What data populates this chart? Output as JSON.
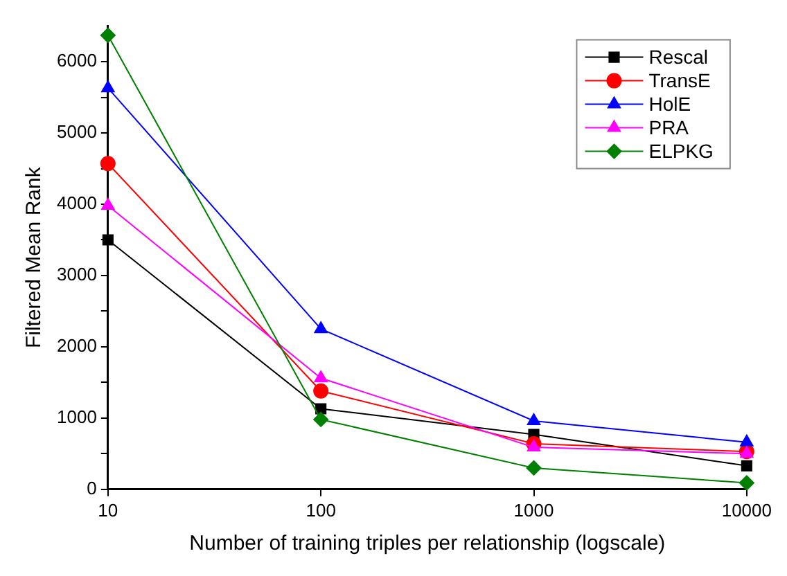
{
  "chart_data": {
    "type": "line",
    "xlabel": "Number of training triples per relationship (logscale)",
    "ylabel": "Filtered Mean Rank",
    "x": [
      10,
      100,
      1000,
      10000
    ],
    "log": "x",
    "xlim": [
      10,
      10000
    ],
    "xticks": [
      10,
      100,
      1000,
      10000
    ],
    "ylim": [
      0,
      6500
    ],
    "yticks": [
      0,
      {
        "value": 500,
        "label": null
      },
      1000,
      {
        "value": 1500,
        "label": null
      },
      2000,
      {
        "value": 2500,
        "label": null
      },
      3000,
      {
        "value": 3500,
        "label": null
      },
      4000,
      {
        "value": 4500,
        "label": null
      },
      5000,
      {
        "value": 5500,
        "label": null
      },
      6000
    ],
    "grid": false,
    "legend": "top right",
    "line_style": "solid",
    "series": [
      {
        "name": "Rescal",
        "color": "#000000",
        "marker": "square",
        "values": [
          3500,
          1130,
          770,
          330
        ]
      },
      {
        "name": "TransE",
        "color": "#ff0000",
        "marker": "circle",
        "values": [
          4570,
          1380,
          640,
          530
        ]
      },
      {
        "name": "HolE",
        "color": "#0000ff",
        "marker": "triangle",
        "values": [
          5630,
          2250,
          960,
          660
        ]
      },
      {
        "name": "PRA",
        "color": "#ff00ff",
        "marker": "triangle",
        "values": [
          3980,
          1560,
          590,
          500
        ]
      },
      {
        "name": "ELPKG",
        "color": "#008000",
        "marker": "diamond",
        "values": [
          6370,
          980,
          300,
          90
        ]
      }
    ]
  }
}
